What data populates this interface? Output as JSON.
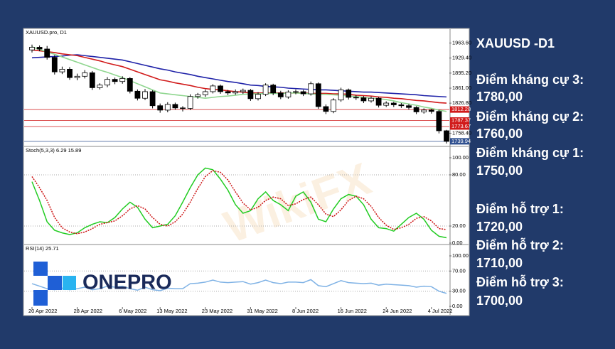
{
  "chart_data": [
    {
      "type": "candlestick",
      "title": "XAUUSD.pro, D1",
      "open": [
        1948,
        1954,
        1950,
        1931,
        1898,
        1904,
        1885,
        1888,
        1896,
        1862,
        1868,
        1881,
        1876,
        1883,
        1854,
        1838,
        1853,
        1821,
        1811,
        1824,
        1816,
        1815,
        1842,
        1846,
        1853,
        1866,
        1853,
        1850,
        1853,
        1856,
        1837,
        1847,
        1868,
        1850,
        1841,
        1852,
        1853,
        1848,
        1871,
        1819,
        1808,
        1834,
        1857,
        1840,
        1839,
        1832,
        1838,
        1822,
        1827,
        1823,
        1821,
        1817,
        1807,
        1811,
        1808,
        1764
      ],
      "high": [
        1960,
        1958,
        1957,
        1936,
        1910,
        1909,
        1894,
        1902,
        1900,
        1872,
        1886,
        1885,
        1888,
        1886,
        1858,
        1859,
        1856,
        1826,
        1829,
        1828,
        1820,
        1847,
        1850,
        1858,
        1870,
        1869,
        1857,
        1858,
        1860,
        1859,
        1852,
        1872,
        1871,
        1855,
        1856,
        1858,
        1857,
        1876,
        1874,
        1824,
        1838,
        1862,
        1860,
        1845,
        1843,
        1842,
        1841,
        1831,
        1830,
        1827,
        1825,
        1820,
        1815,
        1814,
        1812,
        1766
      ],
      "low": [
        1942,
        1945,
        1926,
        1892,
        1893,
        1880,
        1879,
        1883,
        1857,
        1858,
        1863,
        1870,
        1871,
        1849,
        1833,
        1834,
        1815,
        1805,
        1806,
        1812,
        1808,
        1811,
        1837,
        1841,
        1849,
        1848,
        1845,
        1846,
        1848,
        1832,
        1833,
        1843,
        1845,
        1836,
        1837,
        1847,
        1843,
        1844,
        1814,
        1802,
        1804,
        1830,
        1835,
        1834,
        1827,
        1828,
        1817,
        1818,
        1818,
        1816,
        1812,
        1802,
        1803,
        1803,
        1758,
        1735
      ],
      "close": [
        1954,
        1950,
        1931,
        1898,
        1904,
        1885,
        1888,
        1896,
        1862,
        1868,
        1881,
        1876,
        1883,
        1854,
        1838,
        1853,
        1821,
        1811,
        1824,
        1816,
        1815,
        1842,
        1846,
        1853,
        1866,
        1853,
        1850,
        1853,
        1856,
        1837,
        1847,
        1868,
        1850,
        1841,
        1852,
        1853,
        1848,
        1871,
        1819,
        1808,
        1834,
        1857,
        1840,
        1839,
        1832,
        1838,
        1822,
        1827,
        1823,
        1821,
        1817,
        1807,
        1811,
        1808,
        1764,
        1740
      ],
      "up_color": "#ffffff",
      "down_color": "#000000",
      "series": [
        {
          "color": "#1f22a8",
          "values": [
            1930,
            1931,
            1932,
            1933,
            1934,
            1936,
            1937,
            1935,
            1933,
            1931,
            1929,
            1927,
            1925,
            1921,
            1917,
            1913,
            1909,
            1905,
            1902,
            1898,
            1895,
            1892,
            1888,
            1885,
            1882,
            1879,
            1876,
            1874,
            1871,
            1868,
            1867,
            1865,
            1864,
            1863,
            1861,
            1860,
            1859,
            1858,
            1857,
            1857,
            1856,
            1855,
            1854,
            1853,
            1852,
            1852,
            1851,
            1850,
            1849,
            1848,
            1847,
            1846,
            1844,
            1843,
            1842,
            1841
          ]
        },
        {
          "color": "#d11a1a",
          "values": [
            1948,
            1946,
            1944,
            1942,
            1939,
            1937,
            1935,
            1931,
            1927,
            1923,
            1918,
            1914,
            1910,
            1904,
            1898,
            1892,
            1886,
            1880,
            1877,
            1873,
            1870,
            1867,
            1863,
            1860,
            1858,
            1857,
            1855,
            1853,
            1852,
            1850,
            1850,
            1850,
            1850,
            1850,
            1850,
            1850,
            1850,
            1849,
            1849,
            1849,
            1848,
            1848,
            1847,
            1845,
            1844,
            1843,
            1841,
            1840,
            1838,
            1837,
            1835,
            1833,
            1832,
            1830,
            1828,
            1827
          ]
        },
        {
          "color": "#8fd68f",
          "values": [
            1955,
            1949,
            1943,
            1938,
            1932,
            1926,
            1920,
            1914,
            1908,
            1902,
            1897,
            1891,
            1885,
            1878,
            1871,
            1864,
            1857,
            1850,
            1848,
            1846,
            1844,
            1842,
            1840,
            1838,
            1840,
            1842,
            1843,
            1845,
            1847,
            1848,
            1848,
            1849,
            1849,
            1849,
            1850,
            1850,
            1849,
            1848,
            1847,
            1847,
            1846,
            1845,
            1843,
            1842,
            1840,
            1838,
            1837,
            1835,
            1832,
            1828,
            1825,
            1822,
            1818,
            1815,
            1811,
            1808
          ]
        }
      ],
      "hlines": [
        {
          "value": 1812.28,
          "color": "#d11a1a"
        },
        {
          "value": 1787.37,
          "color": "#d11a1a"
        },
        {
          "value": 1773.67,
          "color": "#d11a1a"
        },
        {
          "value": 1739.94,
          "color": "#2f4f8f"
        }
      ],
      "ylim": [
        1730,
        1992
      ],
      "yticks": [
        {
          "value": 1963.6,
          "label": "1963.60"
        },
        {
          "value": 1929.4,
          "label": "1929.40"
        },
        {
          "value": 1895.2,
          "label": "1895.20"
        },
        {
          "value": 1861,
          "label": "1861.00"
        },
        {
          "value": 1826.8,
          "label": "1826.80"
        },
        {
          "value": 1758.4,
          "label": "1758.40"
        }
      ]
    },
    {
      "type": "line",
      "title": "Stoch(5,3,3) 6.29 15.89",
      "series": [
        {
          "color": "#22cc22",
          "values": [
            72,
            50,
            25,
            15,
            12,
            10,
            12,
            18,
            22,
            25,
            24,
            30,
            40,
            48,
            42,
            28,
            18,
            20,
            22,
            32,
            48,
            65,
            80,
            88,
            86,
            75,
            62,
            45,
            35,
            38,
            52,
            60,
            50,
            45,
            38,
            55,
            60,
            48,
            28,
            25,
            40,
            52,
            57,
            55,
            45,
            28,
            18,
            17,
            14,
            22,
            30,
            35,
            28,
            15,
            8,
            6.29
          ]
        },
        {
          "color": "#cc1111",
          "dashed": true,
          "values": [
            78,
            65,
            50,
            30,
            18,
            13,
            11,
            13,
            17,
            22,
            24,
            26,
            32,
            40,
            44,
            40,
            30,
            22,
            20,
            25,
            34,
            48,
            64,
            78,
            85,
            83,
            74,
            60,
            47,
            39,
            42,
            50,
            54,
            52,
            44,
            46,
            51,
            54,
            45,
            34,
            31,
            39,
            50,
            55,
            52,
            43,
            30,
            21,
            16,
            18,
            22,
            29,
            31,
            26,
            17,
            15.89
          ]
        }
      ],
      "ylim": [
        0,
        100
      ],
      "yticks": [
        {
          "value": 100,
          "label": "100.00"
        },
        {
          "value": 80,
          "label": "80.00"
        },
        {
          "value": 20,
          "label": "20.00"
        },
        {
          "value": 0,
          "label": "0.00"
        }
      ],
      "levels": [
        80,
        20
      ]
    },
    {
      "type": "line",
      "title": "RSI(14) 25.71",
      "categories": [
        "20 Apr 2022",
        null,
        null,
        null,
        null,
        null,
        "28 Apr 2022",
        null,
        null,
        null,
        null,
        null,
        "6 May 2022",
        null,
        null,
        null,
        null,
        "13 May 2022",
        null,
        null,
        null,
        null,
        null,
        "23 May 2022",
        null,
        null,
        null,
        null,
        null,
        "31 May 2022",
        null,
        null,
        null,
        null,
        null,
        "8 Jun 2022",
        null,
        null,
        null,
        null,
        null,
        "16 Jun 2022",
        null,
        null,
        null,
        null,
        null,
        "24 Jun 2022",
        null,
        null,
        null,
        null,
        null,
        "4 Jul 2022",
        null,
        null
      ],
      "series": [
        {
          "color": "#7fb2e5",
          "values": [
            45,
            40,
            35,
            33,
            36,
            33,
            35,
            38,
            33,
            35,
            40,
            38,
            40,
            35,
            32,
            38,
            33,
            31,
            36,
            35,
            35,
            45,
            46,
            48,
            52,
            48,
            47,
            48,
            49,
            44,
            47,
            52,
            47,
            45,
            48,
            48,
            47,
            53,
            41,
            39,
            45,
            51,
            47,
            46,
            45,
            46,
            42,
            44,
            43,
            42,
            41,
            38,
            40,
            39,
            30,
            25.71
          ]
        }
      ],
      "ylim": [
        0,
        100
      ],
      "yticks": [
        {
          "value": 100,
          "label": "100.00"
        },
        {
          "value": 70,
          "label": "70.00"
        },
        {
          "value": 30,
          "label": "30.00"
        },
        {
          "value": 0,
          "label": "0.00"
        }
      ],
      "levels": [
        70,
        30
      ]
    }
  ],
  "watermark": "WikiFX",
  "logo": "ONEPRO",
  "sidebar": {
    "title": "XAUUSD  -D1",
    "levels": [
      {
        "label": "Điểm kháng cự 3:",
        "value": "1780,00"
      },
      {
        "label": "Điểm kháng cự 2:",
        "value": "1760,00"
      },
      {
        "label": "Điểm kháng cự 1:",
        "value": "1750,00"
      },
      {
        "label": "Điểm hỗ trợ 1:",
        "value": "1720,00"
      },
      {
        "label": "Điểm hỗ trợ 2:",
        "value": "1710,00"
      },
      {
        "label": "Điểm hỗ trợ 3:",
        "value": "1700,00"
      }
    ]
  }
}
